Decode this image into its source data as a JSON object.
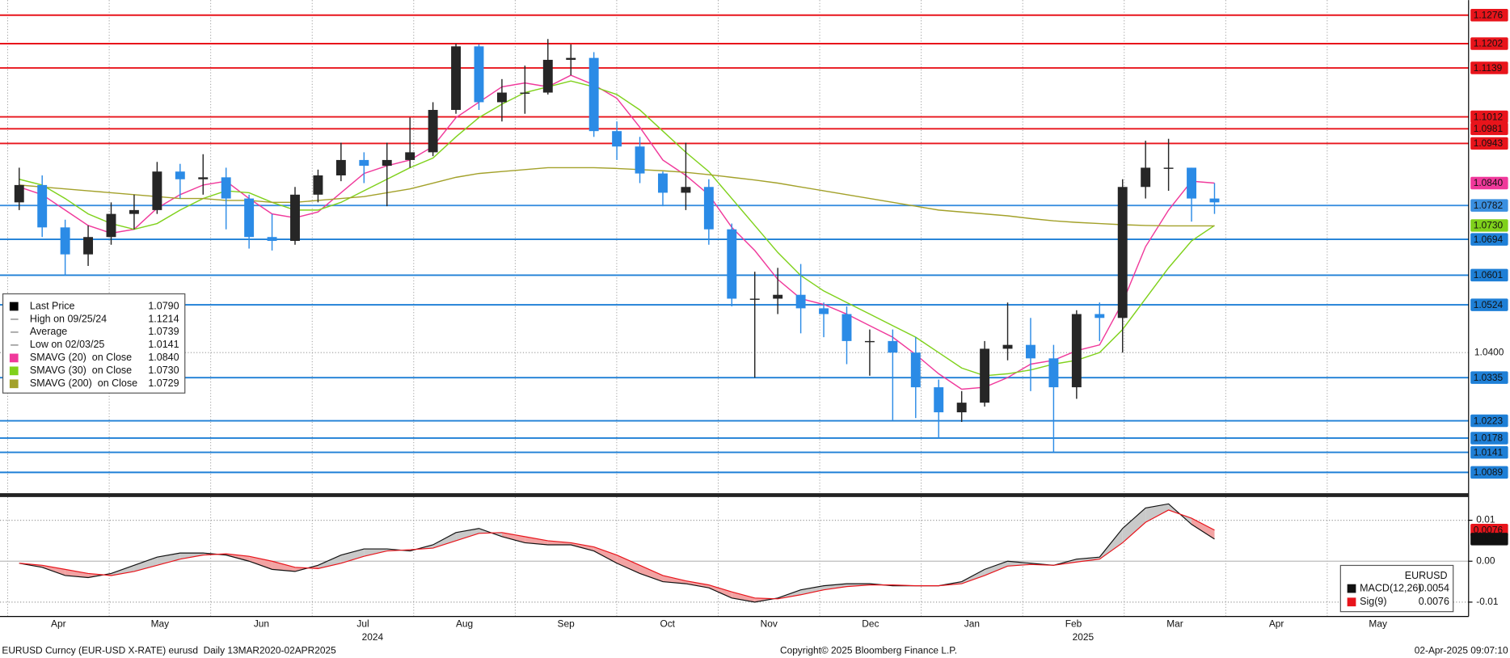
{
  "chart_data": [
    {
      "type": "candlestick",
      "categories": [
        "Apr",
        "May",
        "Jun",
        "Jul",
        "Aug",
        "Sep",
        "Oct",
        "Nov",
        "Dec",
        "Jan",
        "Feb",
        "Mar",
        "Apr",
        "May"
      ],
      "year_labels": [
        "2024",
        "2025"
      ],
      "ylim": [
        1.004,
        1.1315
      ],
      "yticks": [
        {
          "value": 1.04,
          "label": "1.0400"
        }
      ],
      "grid": true,
      "up_color": "#262626",
      "down_color": "#2b8be6",
      "open": [
        1.079,
        1.0835,
        1.0725,
        1.0655,
        1.07,
        1.076,
        1.077,
        1.087,
        1.085,
        1.0855,
        1.08,
        1.07,
        1.069,
        1.081,
        1.086,
        1.09,
        1.0885,
        1.09,
        1.092,
        1.103,
        1.1195,
        1.105,
        1.1075,
        1.1075,
        1.116,
        1.1165,
        1.0975,
        1.0935,
        1.0865,
        1.0815,
        1.083,
        1.072,
        1.054,
        1.054,
        1.055,
        1.0515,
        1.05,
        1.043,
        1.043,
        1.04,
        1.031,
        1.0245,
        1.027,
        1.041,
        1.042,
        1.0385,
        1.031,
        1.05,
        1.049,
        1.083,
        1.088,
        1.088,
        1.08
      ],
      "high": [
        1.088,
        1.086,
        1.0745,
        1.073,
        1.079,
        1.081,
        1.0895,
        1.089,
        1.0915,
        1.088,
        1.081,
        1.076,
        1.083,
        1.0875,
        1.0945,
        1.092,
        1.0945,
        1.101,
        1.105,
        1.1202,
        1.12,
        1.111,
        1.1145,
        1.1214,
        1.12,
        1.118,
        1.1,
        1.096,
        1.087,
        1.0945,
        1.085,
        1.0735,
        1.061,
        1.062,
        1.063,
        1.053,
        1.052,
        1.046,
        1.046,
        1.044,
        1.033,
        1.03,
        1.043,
        1.053,
        1.049,
        1.042,
        1.051,
        1.053,
        1.085,
        1.095,
        1.0955,
        1.088,
        1.084
      ],
      "low": [
        1.077,
        1.07,
        1.06,
        1.0625,
        1.068,
        1.072,
        1.076,
        1.08,
        1.081,
        1.072,
        1.067,
        1.0665,
        1.068,
        1.079,
        1.0845,
        1.084,
        1.078,
        1.088,
        1.091,
        1.102,
        1.103,
        1.1,
        1.102,
        1.107,
        1.112,
        1.096,
        1.09,
        1.084,
        1.078,
        1.077,
        1.068,
        1.052,
        1.0335,
        1.05,
        1.045,
        1.044,
        1.037,
        1.034,
        1.0225,
        1.023,
        1.0178,
        1.022,
        1.026,
        1.038,
        1.03,
        1.0141,
        1.028,
        1.043,
        1.04,
        1.08,
        1.082,
        1.074,
        1.076
      ],
      "close": [
        1.0835,
        1.0725,
        1.0655,
        1.07,
        1.076,
        1.077,
        1.087,
        1.085,
        1.0855,
        1.08,
        1.07,
        1.069,
        1.081,
        1.086,
        1.09,
        1.0885,
        1.09,
        1.092,
        1.103,
        1.1195,
        1.105,
        1.1075,
        1.1075,
        1.116,
        1.1165,
        1.0975,
        1.0935,
        1.0865,
        1.0815,
        1.083,
        1.072,
        1.054,
        1.054,
        1.055,
        1.0515,
        1.05,
        1.043,
        1.043,
        1.04,
        1.031,
        1.0245,
        1.027,
        1.041,
        1.042,
        1.0385,
        1.031,
        1.05,
        1.049,
        1.083,
        1.088,
        1.088,
        1.08,
        1.079
      ],
      "overlays": [
        {
          "name": "SMAVG (20)  on Close",
          "color": "#f0399b",
          "value_label": "1.0840",
          "axis_label": true,
          "label_text_color": "#ffffff",
          "values": [
            1.083,
            1.081,
            1.077,
            1.073,
            1.071,
            1.072,
            1.0775,
            1.081,
            1.0835,
            1.0845,
            1.08,
            1.076,
            1.075,
            1.0765,
            1.0815,
            1.0865,
            1.0885,
            1.09,
            1.0935,
            1.101,
            1.105,
            1.109,
            1.11,
            1.109,
            1.112,
            1.1095,
            1.106,
            1.0985,
            1.09,
            1.086,
            1.081,
            1.0725,
            1.0665,
            1.059,
            1.054,
            1.0525,
            1.05,
            1.047,
            1.044,
            1.0395,
            1.0345,
            1.0305,
            1.031,
            1.0335,
            1.037,
            1.038,
            1.0405,
            1.042,
            1.053,
            1.0675,
            1.077,
            1.0845,
            1.084
          ]
        },
        {
          "name": "SMAVG (30)  on Close",
          "color": "#7fd11b",
          "value_label": "1.0730",
          "axis_label": true,
          "label_text_color": "#111111",
          "values": [
            1.085,
            1.0835,
            1.08,
            1.076,
            1.0735,
            1.072,
            1.0735,
            1.077,
            1.08,
            1.082,
            1.0815,
            1.079,
            1.077,
            1.077,
            1.079,
            1.082,
            1.085,
            1.088,
            1.0905,
            1.096,
            1.101,
            1.1045,
            1.1075,
            1.109,
            1.1105,
            1.109,
            1.107,
            1.103,
            1.0975,
            1.092,
            1.087,
            1.08,
            1.073,
            1.066,
            1.06,
            1.056,
            1.053,
            1.05,
            1.047,
            1.044,
            1.04,
            1.036,
            1.034,
            1.0345,
            1.0355,
            1.037,
            1.038,
            1.04,
            1.046,
            1.054,
            1.062,
            1.069,
            1.073
          ]
        },
        {
          "name": "SMAVG (200)  on Close",
          "color": "#a3a12a",
          "value_label": "1.0729",
          "axis_label": false,
          "label_text_color": "#ffffff",
          "values": [
            1.0835,
            1.083,
            1.0825,
            1.082,
            1.0815,
            1.081,
            1.0805,
            1.08,
            1.08,
            1.0795,
            1.0795,
            1.079,
            1.079,
            1.0795,
            1.08,
            1.0805,
            1.0815,
            1.0825,
            1.084,
            1.0855,
            1.0865,
            1.087,
            1.0875,
            1.088,
            1.088,
            1.088,
            1.0878,
            1.0875,
            1.0872,
            1.0868,
            1.0862,
            1.0855,
            1.0848,
            1.084,
            1.083,
            1.082,
            1.081,
            1.08,
            1.079,
            1.078,
            1.077,
            1.0765,
            1.076,
            1.0755,
            1.0748,
            1.0742,
            1.0738,
            1.0735,
            1.0732,
            1.073,
            1.0729,
            1.0729,
            1.0729
          ]
        }
      ],
      "levels": {
        "values": [
          1.1276,
          1.1202,
          1.1139,
          1.1012,
          1.0981,
          1.0943,
          1.0782,
          1.0694,
          1.0601,
          1.0524,
          1.0335,
          1.0223,
          1.0178,
          1.0141,
          1.0089
        ],
        "colors": [
          "#e8141b",
          "#e8141b",
          "#e8141b",
          "#e8141b",
          "#e8141b",
          "#e8141b",
          "#3a8fe0",
          "#1e7fd6",
          "#1e7fd6",
          "#1e7fd6",
          "#1e7fd6",
          "#1e7fd6",
          "#1e7fd6",
          "#1e7fd6",
          "#1e7fd6"
        ]
      },
      "stats": [
        {
          "name": "Last Price",
          "value": 1.079,
          "label": "1.0790"
        },
        {
          "name": "High on 09/25/24",
          "value": 1.1214,
          "label": "1.1214"
        },
        {
          "name": "Average",
          "value": 1.0739,
          "label": "1.0739"
        },
        {
          "name": "Low on 02/03/25",
          "value": 1.0141,
          "label": "1.0141"
        }
      ]
    },
    {
      "type": "macd",
      "ylim": [
        -0.0135,
        0.0152
      ],
      "yticks": [
        0.01,
        {
          "value": 0,
          "label": "0.00"
        },
        -0.01
      ],
      "legend_title": "EURUSD",
      "fill_above": "#c9c9c9",
      "fill_below": "#f2a3a3",
      "series": [
        {
          "name": "MACD(12,26)",
          "color": "#111111",
          "value_label": "0.0054",
          "values": [
            -0.0005,
            -0.0015,
            -0.0035,
            -0.004,
            -0.003,
            -0.001,
            0.001,
            0.002,
            0.002,
            0.0015,
            0.0,
            -0.002,
            -0.0025,
            -0.001,
            0.0015,
            0.003,
            0.003,
            0.0025,
            0.004,
            0.007,
            0.008,
            0.006,
            0.0045,
            0.004,
            0.004,
            0.0025,
            -0.0005,
            -0.003,
            -0.005,
            -0.0055,
            -0.0065,
            -0.009,
            -0.01,
            -0.009,
            -0.007,
            -0.006,
            -0.0055,
            -0.0055,
            -0.006,
            -0.006,
            -0.006,
            -0.005,
            -0.002,
            0.0,
            -0.0005,
            -0.001,
            0.0005,
            0.001,
            0.008,
            0.013,
            0.014,
            0.009,
            0.0054
          ]
        },
        {
          "name": "Sig(9)",
          "color": "#e8141b",
          "value_label": "0.0076",
          "values": [
            -0.0005,
            -0.001,
            -0.002,
            -0.003,
            -0.0035,
            -0.0025,
            -0.001,
            0.0005,
            0.0015,
            0.0018,
            0.0012,
            0.0,
            -0.0015,
            -0.0018,
            -0.0005,
            0.0012,
            0.0025,
            0.0028,
            0.0032,
            0.005,
            0.0068,
            0.007,
            0.006,
            0.005,
            0.0045,
            0.0035,
            0.0015,
            -0.001,
            -0.0035,
            -0.0048,
            -0.0058,
            -0.0075,
            -0.009,
            -0.0092,
            -0.0082,
            -0.007,
            -0.0062,
            -0.0058,
            -0.0058,
            -0.006,
            -0.006,
            -0.0055,
            -0.0035,
            -0.0012,
            -0.0008,
            -0.001,
            -0.0002,
            0.0005,
            0.0045,
            0.0095,
            0.0125,
            0.0105,
            0.0076
          ]
        }
      ]
    }
  ],
  "footer": {
    "left": "EURUSD Curncy (EUR-USD X-RATE) eurusd  Daily 13MAR2020-02APR2025",
    "center": "Copyright© 2025 Bloomberg Finance L.P.",
    "right": "02-Apr-2025 09:07:10"
  }
}
